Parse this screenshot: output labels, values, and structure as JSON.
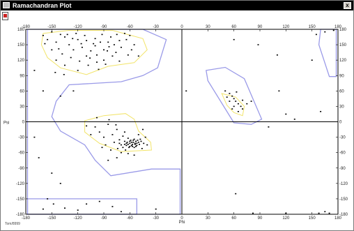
{
  "window": {
    "title": "Ramachandran Plot",
    "close_glyph": "x",
    "footer_text": "Tom/8999"
  },
  "colors": {
    "core_region": "#9a9ae8",
    "allowed_region": "#f2e46a",
    "points": "#000000",
    "axes": "#000000"
  },
  "chart_data": {
    "type": "scatter",
    "xlabel": "Phi",
    "ylabel": "Psi",
    "xlim": [
      -180,
      180
    ],
    "ylim": [
      -180,
      180
    ],
    "xticks": [
      -180,
      -150,
      -120,
      -90,
      -60,
      -30,
      0,
      30,
      60,
      90,
      120,
      150,
      180
    ],
    "yticks": [
      -180,
      -150,
      -120,
      -90,
      -60,
      -30,
      0,
      30,
      60,
      90,
      120,
      150,
      180
    ],
    "regions_core": [
      [
        [
          -178,
          180
        ],
        [
          -45,
          180
        ],
        [
          -18,
          160
        ],
        [
          -28,
          105
        ],
        [
          -45,
          90
        ],
        [
          -70,
          78
        ],
        [
          -130,
          72
        ],
        [
          -145,
          40
        ],
        [
          -150,
          10
        ],
        [
          -140,
          -18
        ],
        [
          -112,
          -45
        ],
        [
          -100,
          -75
        ],
        [
          -82,
          -105
        ],
        [
          -35,
          -92
        ],
        [
          -2,
          -92
        ],
        [
          -2,
          -180
        ],
        [
          -178,
          -180
        ]
      ],
      [
        [
          28,
          100
        ],
        [
          50,
          106
        ],
        [
          72,
          84
        ],
        [
          92,
          5
        ],
        [
          80,
          -5
        ],
        [
          60,
          -2
        ],
        [
          30,
          80
        ]
      ],
      [
        [
          160,
          180
        ],
        [
          178,
          180
        ],
        [
          178,
          88
        ],
        [
          170,
          88
        ],
        [
          158,
          150
        ]
      ]
    ],
    "regions_core_strip": [
      [
        -178,
        -150
      ],
      [
        -52,
        -150
      ],
      [
        -52,
        -180
      ],
      [
        -178,
        -180
      ]
    ],
    "regions_allowed": [
      [
        [
          -160,
          172
        ],
        [
          -130,
          178
        ],
        [
          -80,
          178
        ],
        [
          -45,
          162
        ],
        [
          -40,
          140
        ],
        [
          -55,
          115
        ],
        [
          -85,
          108
        ],
        [
          -110,
          92
        ],
        [
          -140,
          105
        ],
        [
          -155,
          125
        ],
        [
          -162,
          150
        ]
      ],
      [
        [
          -112,
          2
        ],
        [
          -90,
          12
        ],
        [
          -65,
          16
        ],
        [
          -55,
          5
        ],
        [
          -50,
          -18
        ],
        [
          -36,
          -40
        ],
        [
          -35,
          -55
        ],
        [
          -70,
          -58
        ],
        [
          -95,
          -42
        ],
        [
          -112,
          -20
        ]
      ],
      [
        [
          46,
          55
        ],
        [
          62,
          48
        ],
        [
          72,
          30
        ],
        [
          70,
          12
        ],
        [
          60,
          18
        ],
        [
          52,
          32
        ]
      ]
    ],
    "points": [
      [
        -150,
        175
      ],
      [
        -140,
        170
      ],
      [
        -135,
        165
      ],
      [
        -120,
        160
      ],
      [
        -110,
        158
      ],
      [
        -100,
        162
      ],
      [
        -92,
        170
      ],
      [
        -85,
        155
      ],
      [
        -78,
        150
      ],
      [
        -70,
        145
      ],
      [
        -64,
        160
      ],
      [
        -58,
        140
      ],
      [
        -130,
        150
      ],
      [
        -125,
        140
      ],
      [
        -115,
        145
      ],
      [
        -105,
        138
      ],
      [
        -98,
        130
      ],
      [
        -90,
        120
      ],
      [
        -80,
        128
      ],
      [
        -72,
        118
      ],
      [
        -145,
        155
      ],
      [
        -155,
        160
      ],
      [
        -160,
        168
      ],
      [
        -138,
        132
      ],
      [
        -128,
        125
      ],
      [
        -118,
        118
      ],
      [
        -108,
        110
      ],
      [
        -96,
        102
      ],
      [
        -88,
        112
      ],
      [
        -76,
        135
      ],
      [
        -62,
        130
      ],
      [
        -55,
        150
      ],
      [
        -50,
        128
      ],
      [
        -145,
        120
      ],
      [
        -135,
        110
      ],
      [
        -150,
        140
      ],
      [
        -120,
        100
      ],
      [
        -110,
        128
      ],
      [
        -100,
        148
      ],
      [
        -90,
        140
      ],
      [
        -82,
        165
      ],
      [
        -75,
        170
      ],
      [
        -66,
        172
      ],
      [
        -142,
        142
      ],
      [
        -132,
        170
      ],
      [
        -122,
        172
      ],
      [
        -112,
        168
      ],
      [
        -102,
        152
      ],
      [
        -94,
        155
      ],
      [
        -86,
        138
      ],
      [
        -146,
        96
      ],
      [
        -136,
        92
      ],
      [
        -158,
        152
      ],
      [
        -126,
        162
      ],
      [
        -116,
        152
      ],
      [
        -106,
        124
      ],
      [
        -98,
        116
      ],
      [
        -84,
        146
      ],
      [
        -72,
        158
      ],
      [
        -60,
        168
      ],
      [
        -170,
        100
      ],
      [
        -160,
        60
      ],
      [
        -140,
        50
      ],
      [
        -125,
        60
      ],
      [
        -170,
        -30
      ],
      [
        -165,
        -70
      ],
      [
        -150,
        -100
      ],
      [
        -140,
        -120
      ],
      [
        -155,
        -150
      ],
      [
        -148,
        -160
      ],
      [
        -160,
        -170
      ],
      [
        -135,
        -168
      ],
      [
        -120,
        -172
      ],
      [
        -110,
        -160
      ],
      [
        -95,
        -155
      ],
      [
        -80,
        -165
      ],
      [
        -70,
        -175
      ],
      [
        -30,
        -170
      ],
      [
        -100,
        -10
      ],
      [
        -95,
        -20
      ],
      [
        -90,
        -30
      ],
      [
        -85,
        -5
      ],
      [
        -80,
        -25
      ],
      [
        -78,
        -40
      ],
      [
        -75,
        -15
      ],
      [
        -72,
        -35
      ],
      [
        -70,
        -45
      ],
      [
        -68,
        -28
      ],
      [
        -66,
        -38
      ],
      [
        -64,
        -42
      ],
      [
        -62,
        -32
      ],
      [
        -60,
        -48
      ],
      [
        -60,
        -38
      ],
      [
        -58,
        -40
      ],
      [
        -57,
        -44
      ],
      [
        -56,
        -36
      ],
      [
        -55,
        -50
      ],
      [
        -54,
        -42
      ],
      [
        -53,
        -38
      ],
      [
        -52,
        -46
      ],
      [
        -50,
        -40
      ],
      [
        -48,
        -34
      ],
      [
        -46,
        -52
      ],
      [
        -44,
        -42
      ],
      [
        -42,
        -30
      ],
      [
        -40,
        -45
      ],
      [
        -65,
        -55
      ],
      [
        -70,
        -60
      ],
      [
        -82,
        -55
      ],
      [
        -88,
        -45
      ],
      [
        -92,
        -50
      ],
      [
        -105,
        -25
      ],
      [
        -110,
        -8
      ],
      [
        -98,
        8
      ],
      [
        -84,
        4
      ],
      [
        -76,
        -6
      ],
      [
        -66,
        -20
      ],
      [
        -50,
        -25
      ],
      [
        -45,
        -15
      ],
      [
        -62,
        -62
      ],
      [
        -55,
        -65
      ],
      [
        -75,
        -70
      ],
      [
        -85,
        -75
      ],
      [
        -60,
        -42
      ],
      [
        -58,
        -46
      ],
      [
        -56,
        -40
      ],
      [
        -54,
        -44
      ],
      [
        -52,
        -42
      ],
      [
        -62,
        -44
      ],
      [
        -59,
        -36
      ],
      [
        -61,
        -50
      ],
      [
        -63,
        -40
      ],
      [
        -57,
        -48
      ],
      [
        -55,
        -34
      ],
      [
        -53,
        -48
      ],
      [
        -51,
        -36
      ],
      [
        -64,
        -46
      ],
      [
        -66,
        -44
      ],
      [
        -49,
        -44
      ],
      [
        -47,
        -38
      ],
      [
        -68,
        -50
      ],
      [
        -72,
        -42
      ],
      [
        -74,
        -52
      ],
      [
        50,
        60
      ],
      [
        55,
        55
      ],
      [
        58,
        50
      ],
      [
        60,
        45
      ],
      [
        62,
        40
      ],
      [
        65,
        35
      ],
      [
        68,
        30
      ],
      [
        70,
        25
      ],
      [
        55,
        40
      ],
      [
        60,
        30
      ],
      [
        65,
        20
      ],
      [
        52,
        48
      ],
      [
        63,
        58
      ],
      [
        70,
        42
      ],
      [
        75,
        35
      ],
      [
        58,
        25
      ],
      [
        5,
        60
      ],
      [
        60,
        160
      ],
      [
        88,
        150
      ],
      [
        110,
        130
      ],
      [
        150,
        120
      ],
      [
        155,
        170
      ],
      [
        165,
        175
      ],
      [
        175,
        178
      ],
      [
        112,
        60
      ],
      [
        80,
        40
      ],
      [
        120,
        15
      ],
      [
        130,
        5
      ],
      [
        160,
        20
      ],
      [
        100,
        -10
      ],
      [
        62,
        -140
      ],
      [
        82,
        -178
      ],
      [
        158,
        -178
      ],
      [
        165,
        -175
      ],
      [
        170,
        -178
      ],
      [
        120,
        -178
      ]
    ]
  }
}
